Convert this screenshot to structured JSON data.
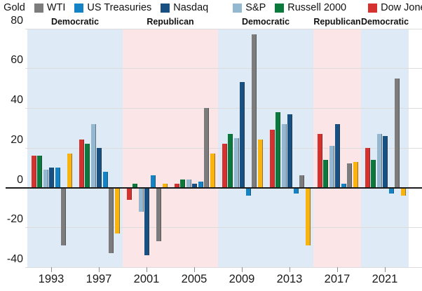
{
  "chart_data": {
    "type": "bar",
    "categories": [
      "1993",
      "1997",
      "2001",
      "2005",
      "2009",
      "2013",
      "2017",
      "2021"
    ],
    "series": [
      {
        "name": "Gold",
        "color": "#F9B410",
        "values": [
          17,
          -23,
          2,
          17,
          24,
          -29,
          13,
          -4
        ]
      },
      {
        "name": "WTI",
        "color": "#7C7C7C",
        "values": [
          -29,
          -33,
          -27,
          40,
          77,
          6,
          12,
          55
        ]
      },
      {
        "name": "US Treasuries",
        "color": "#1483C6",
        "values": [
          10,
          8,
          6,
          3,
          -4,
          -3,
          2,
          -3
        ]
      },
      {
        "name": "Nasdaq",
        "color": "#175081",
        "values": [
          10,
          20,
          -34,
          2,
          53,
          37,
          32,
          26
        ]
      },
      {
        "name": "S&P",
        "color": "#95B8D1",
        "values": [
          9,
          32,
          -12,
          4,
          25,
          32,
          21,
          27
        ]
      },
      {
        "name": "Russell 2000",
        "color": "#0A7A3C",
        "values": [
          16,
          22,
          2,
          4,
          27,
          38,
          14,
          14
        ]
      },
      {
        "name": "Dow Jones",
        "color": "#D5322F",
        "values": [
          16,
          24,
          -6,
          2,
          22,
          29,
          27,
          20
        ]
      }
    ],
    "bar_order_note": "bars drawn left-to-right in reverse legend order: Dow Jones, Russell 2000, S&P, Nasdaq, US Treasuries, WTI, Gold",
    "y_ticks": [
      80,
      60,
      40,
      20,
      0,
      -20,
      -40
    ],
    "ylim": [
      -40,
      80
    ],
    "grid": true,
    "legend_position": "top",
    "party_bands": [
      {
        "label": "Democratic",
        "terms": [
          "1993",
          "1997"
        ],
        "color_key": "democratic"
      },
      {
        "label": "Republican",
        "terms": [
          "2001",
          "2005"
        ],
        "color_key": "republican"
      },
      {
        "label": "Democratic",
        "terms": [
          "2009",
          "2013"
        ],
        "color_key": "democratic"
      },
      {
        "label": "Republican",
        "terms": [
          "2017"
        ],
        "color_key": "republican"
      },
      {
        "label": "Democratic",
        "terms": [
          "2021"
        ],
        "color_key": "democratic"
      }
    ],
    "band_colors": {
      "democratic": "#DEEBF6",
      "republican": "#FCE5E6"
    }
  }
}
